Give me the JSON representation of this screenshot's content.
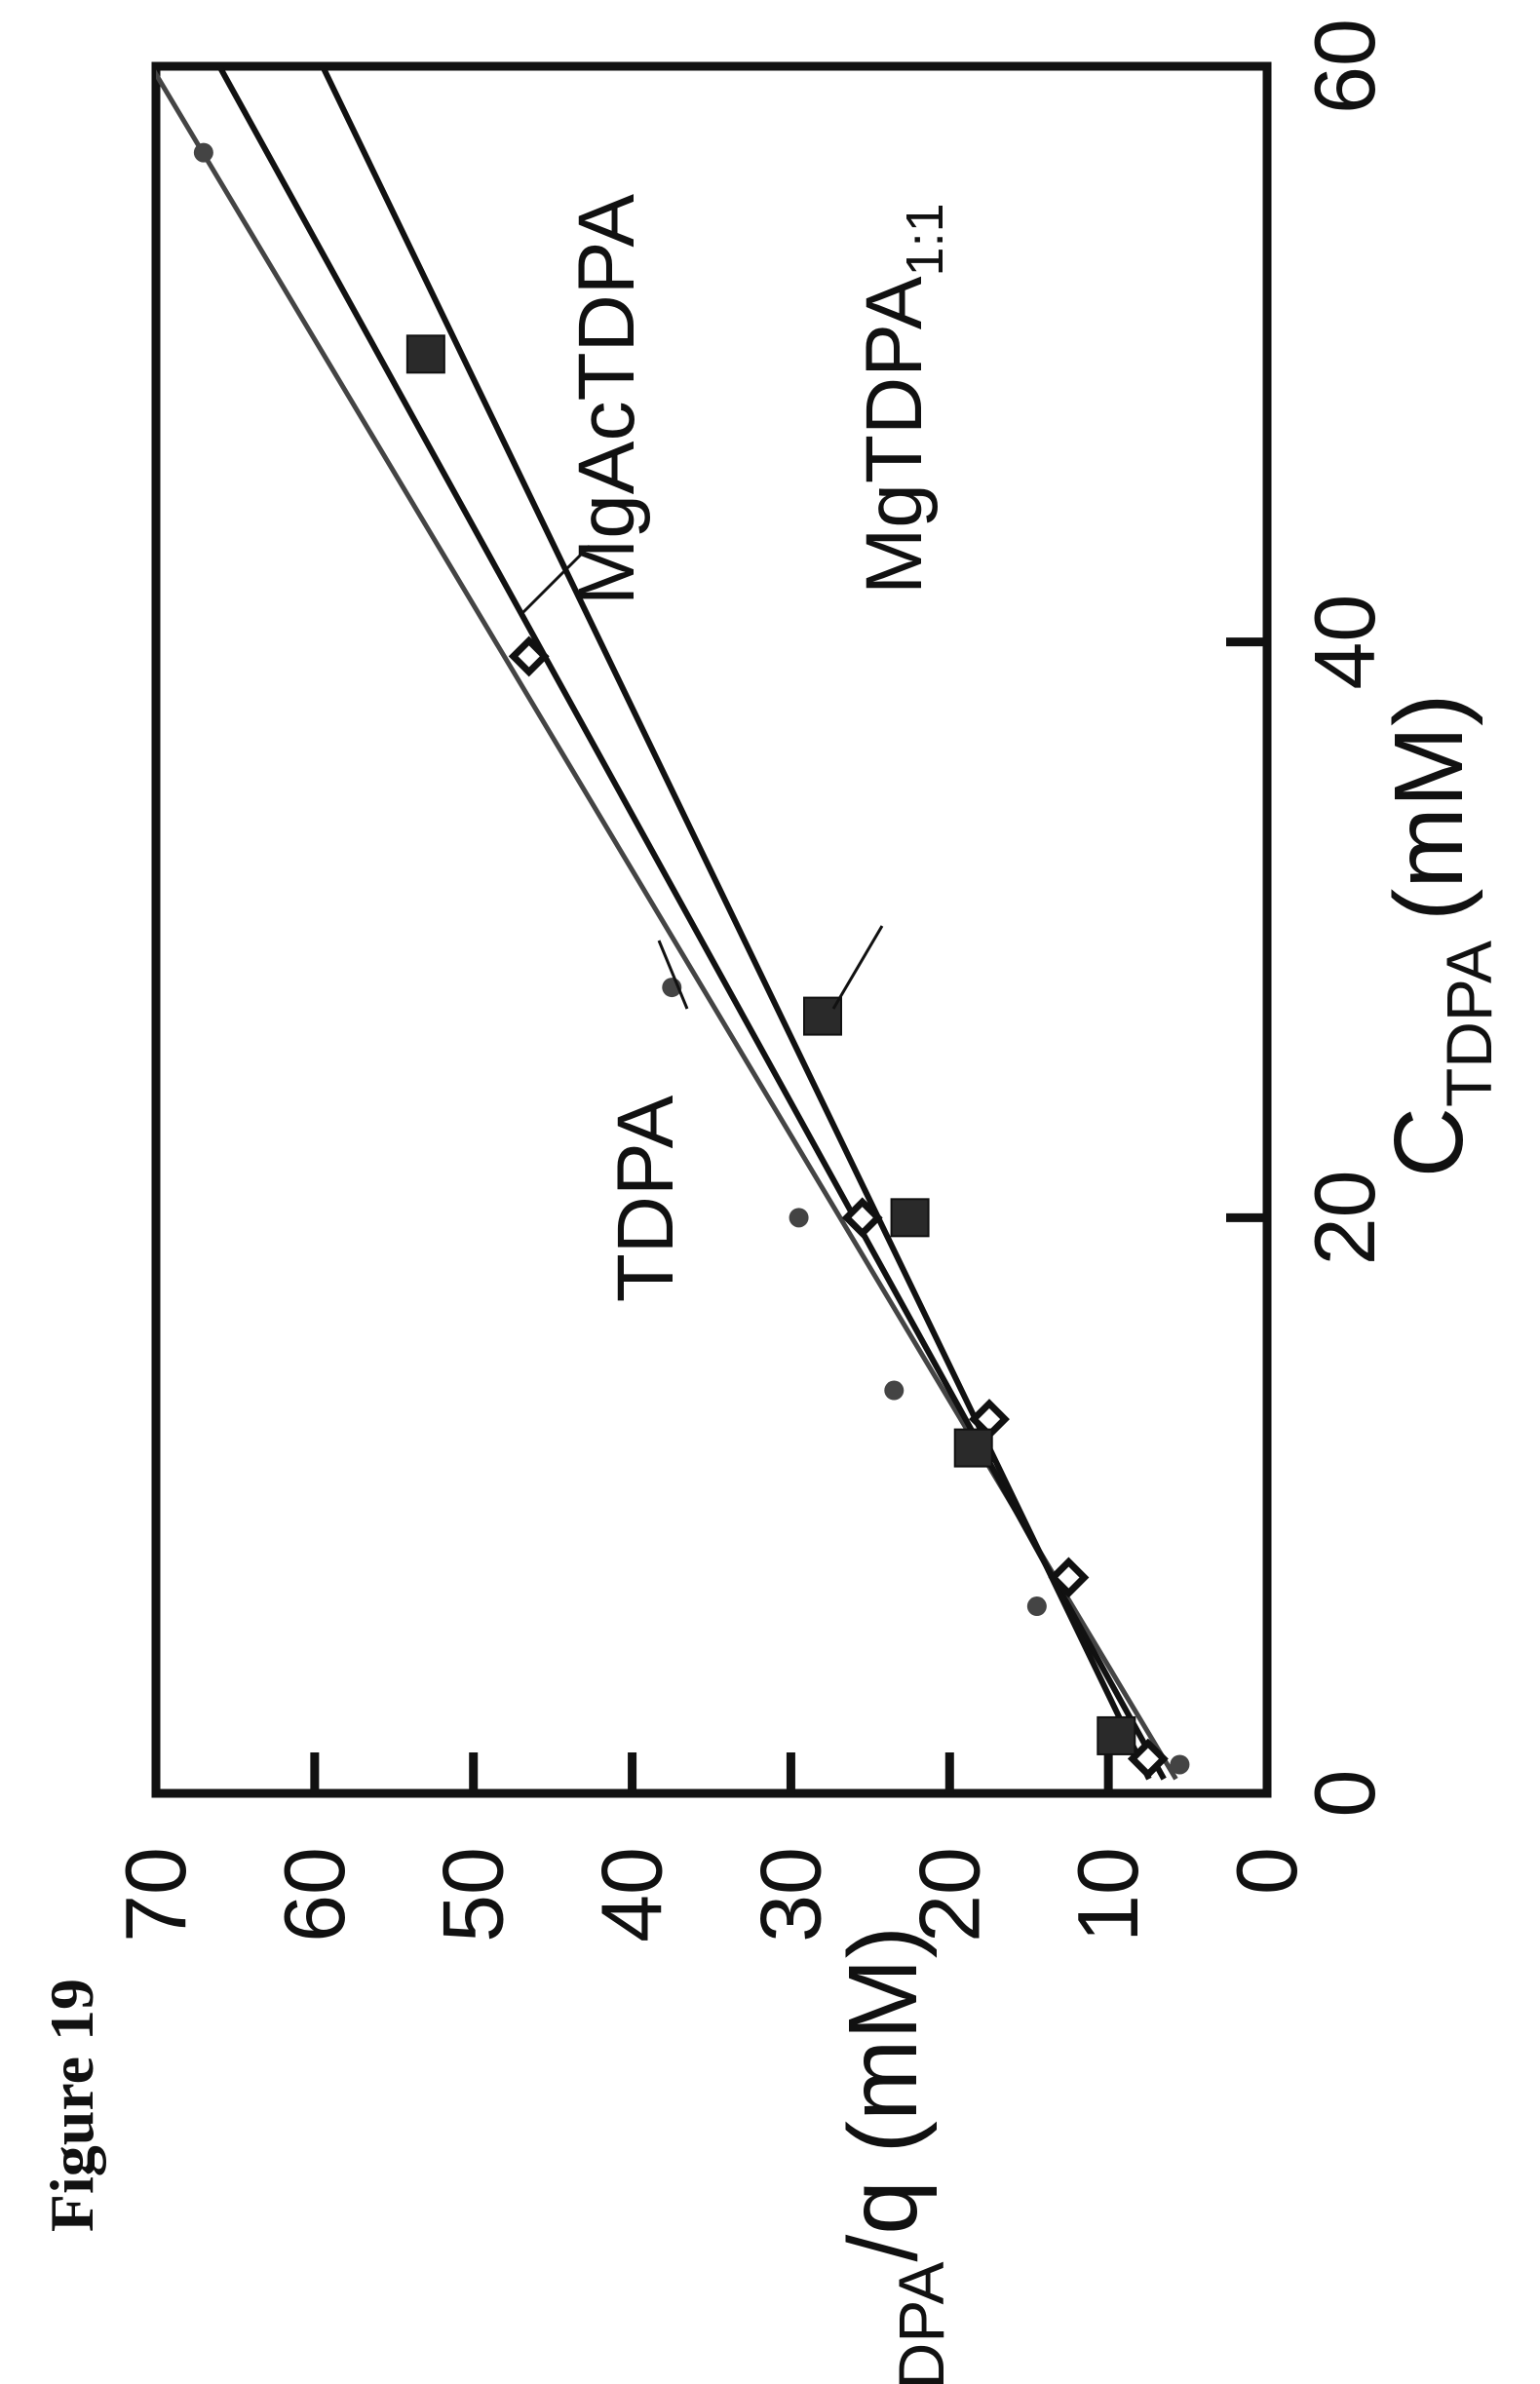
{
  "figure_label": "Figure 19",
  "chart_data": {
    "type": "scatter",
    "orientation": "rotated 90 degrees counter-clockwise on the page",
    "xlabel": {
      "main": "C",
      "sub": "TDPA",
      "unit": "(mM)"
    },
    "ylabel": {
      "main": "C",
      "sub": "TDPA",
      "rest": "/q (mM)"
    },
    "xlim": [
      0,
      60
    ],
    "ylim": [
      0,
      70
    ],
    "x_ticks": [
      0,
      20,
      40,
      60
    ],
    "y_ticks": [
      0,
      10,
      20,
      30,
      40,
      50,
      60,
      70
    ],
    "grid": false,
    "colors": {
      "ink": "#111111",
      "tdpa": "#444444"
    },
    "series": [
      {
        "name": "TDPA",
        "marker": "circle",
        "points": [
          [
            1.0,
            5.5
          ],
          [
            6.5,
            14.5
          ],
          [
            14,
            23.5
          ],
          [
            20,
            29.5
          ],
          [
            28,
            37.5
          ],
          [
            57,
            67
          ]
        ],
        "fit": {
          "slope": 1.085,
          "intercept": 5.2
        }
      },
      {
        "name": "MgAcTDPA",
        "marker": "diamond",
        "points": [
          [
            1.2,
            7.5
          ],
          [
            7.5,
            12.5
          ],
          [
            13,
            17.5
          ],
          [
            20,
            25.5
          ],
          [
            39.5,
            46.5
          ]
        ],
        "fit": {
          "slope": 1.0,
          "intercept": 6.0
        }
      },
      {
        "name": "MgTDPA",
        "name_sub": "1:1",
        "marker": "square",
        "points": [
          [
            2,
            9.5
          ],
          [
            12,
            18.5
          ],
          [
            20,
            22.5
          ],
          [
            27,
            28
          ],
          [
            50,
            53
          ]
        ],
        "fit": {
          "slope": 0.875,
          "intercept": 7.0
        }
      }
    ]
  }
}
